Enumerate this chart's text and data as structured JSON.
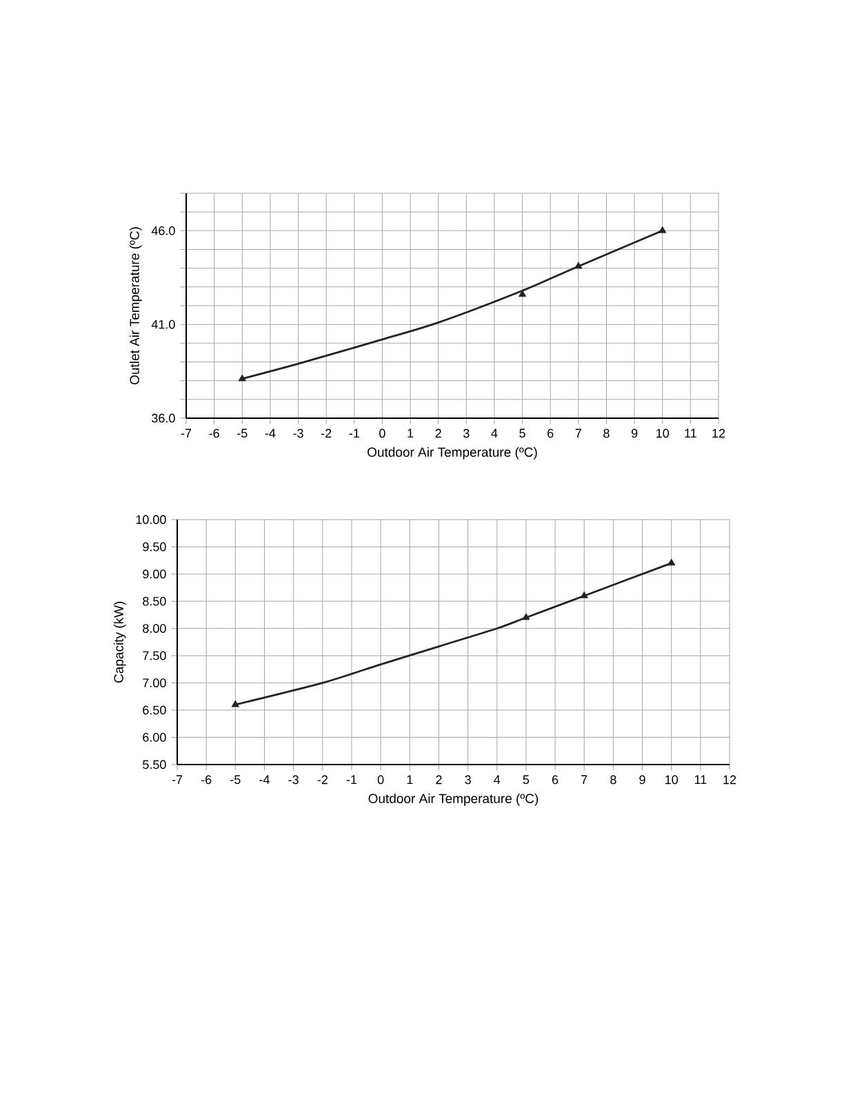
{
  "chart_data": [
    {
      "type": "line",
      "xlabel": "Outdoor Air Temperature (ºC)",
      "ylabel": "Outlet Air Temperature (ºC)",
      "xlim": [
        -7,
        12
      ],
      "ylim": [
        36,
        48
      ],
      "xticks": [
        -7,
        -6,
        -5,
        -4,
        -3,
        -2,
        -1,
        0,
        1,
        2,
        3,
        4,
        5,
        6,
        7,
        8,
        9,
        10,
        11,
        12
      ],
      "yticks": [
        {
          "value": 36,
          "label": "36.0"
        },
        {
          "value": 37,
          "label": null
        },
        {
          "value": 38,
          "label": null
        },
        {
          "value": 39,
          "label": null
        },
        {
          "value": 40,
          "label": null
        },
        {
          "value": 41,
          "label": "41.0"
        },
        {
          "value": 42,
          "label": null
        },
        {
          "value": 43,
          "label": null
        },
        {
          "value": 44,
          "label": null
        },
        {
          "value": 45,
          "label": null
        },
        {
          "value": 46,
          "label": "46.0"
        },
        {
          "value": 47,
          "label": null
        },
        {
          "value": 48,
          "label": null
        }
      ],
      "grid": true,
      "series": [
        {
          "type": "scatter",
          "marker": "triangle",
          "color": "#222222",
          "x": [
            -5,
            5,
            7,
            10
          ],
          "values": [
            38.1,
            42.6,
            44.1,
            46.0
          ]
        },
        {
          "type": "line",
          "marker": "none",
          "color": "#222222",
          "x": [
            -5,
            -3,
            0,
            2,
            5,
            7,
            10
          ],
          "values": [
            38.1,
            38.9,
            40.2,
            41.1,
            42.8,
            44.1,
            46.0
          ]
        }
      ]
    },
    {
      "type": "line",
      "xlabel": "Outdoor Air Temperature (ºC)",
      "ylabel": "Capacity (kW)",
      "xlim": [
        -7,
        12
      ],
      "ylim": [
        5.5,
        10
      ],
      "xticks": [
        -7,
        -6,
        -5,
        -4,
        -3,
        -2,
        -1,
        0,
        1,
        2,
        3,
        4,
        5,
        6,
        7,
        8,
        9,
        10,
        11,
        12
      ],
      "yticks": [
        {
          "value": 5.5,
          "label": "5.50"
        },
        {
          "value": 6,
          "label": "6.00"
        },
        {
          "value": 6.5,
          "label": "6.50"
        },
        {
          "value": 7,
          "label": "7.00"
        },
        {
          "value": 7.5,
          "label": "7.50"
        },
        {
          "value": 8,
          "label": "8.00"
        },
        {
          "value": 8.5,
          "label": "8.50"
        },
        {
          "value": 9,
          "label": "9.00"
        },
        {
          "value": 9.5,
          "label": "9.50"
        },
        {
          "value": 10,
          "label": "10.00"
        }
      ],
      "grid": true,
      "series": [
        {
          "type": "scatter",
          "marker": "triangle",
          "color": "#222222",
          "x": [
            -5,
            5,
            7,
            10
          ],
          "values": [
            6.6,
            8.2,
            8.6,
            9.2
          ]
        },
        {
          "type": "line",
          "marker": "none",
          "color": "#222222",
          "x": [
            -5,
            -2,
            0,
            2,
            4,
            5,
            7,
            10
          ],
          "values": [
            6.6,
            7.0,
            7.34,
            7.67,
            8.0,
            8.2,
            8.6,
            9.2
          ]
        }
      ]
    }
  ]
}
